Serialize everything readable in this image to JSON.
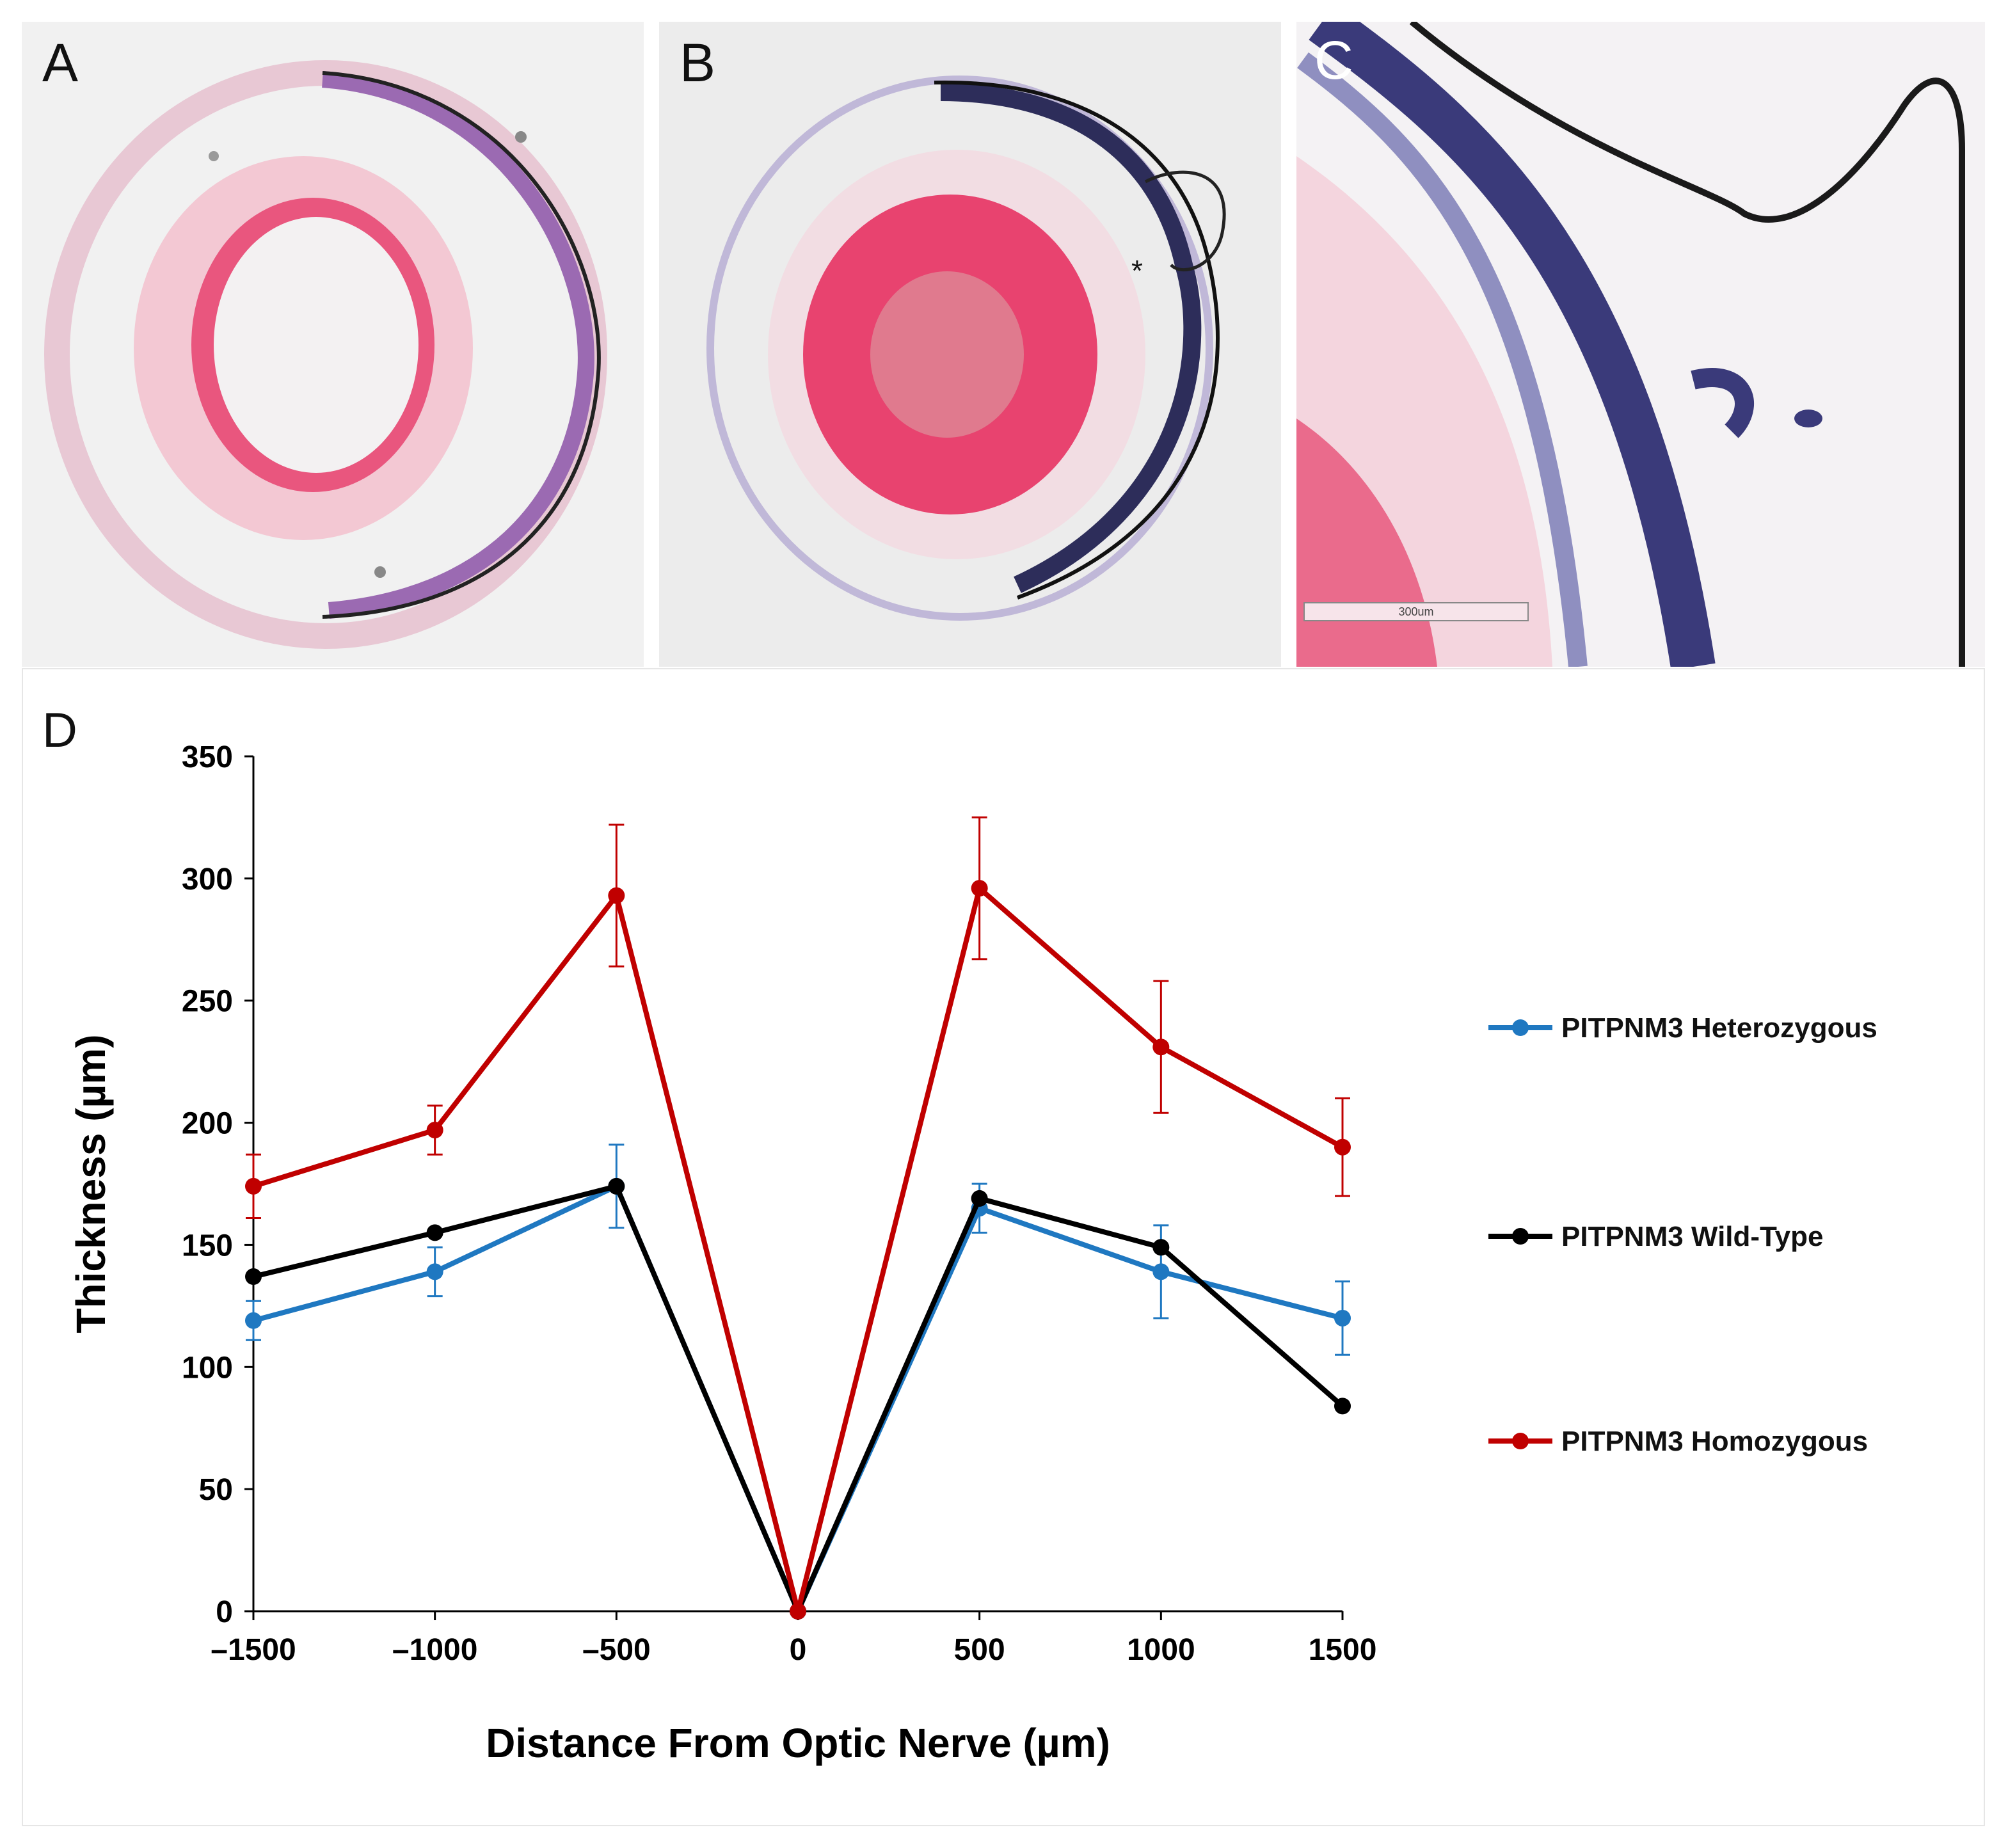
{
  "panels": {
    "a": {
      "letter": "A"
    },
    "b": {
      "letter": "B",
      "asterisk": "*"
    },
    "c": {
      "letter": "C",
      "scale_bar": "300um"
    },
    "d": {
      "letter": "D"
    }
  },
  "chart_data": {
    "type": "line",
    "title": "",
    "xlabel": "Distance From Optic Nerve (µm)",
    "ylabel": "Thickness (µm)",
    "xlim": [
      -1500,
      1500
    ],
    "ylim": [
      0,
      350
    ],
    "x_ticks": [
      -1500,
      -1000,
      -500,
      0,
      500,
      1000,
      1500
    ],
    "x_tick_labels": [
      "–1500",
      "–1000",
      "–500",
      "0",
      "500",
      "1000",
      "1500"
    ],
    "y_ticks": [
      0,
      50,
      100,
      150,
      200,
      250,
      300,
      350
    ],
    "y_tick_labels": [
      "0",
      "50",
      "100",
      "150",
      "200",
      "250",
      "300",
      "350"
    ],
    "grid": false,
    "legend_position": "right",
    "x": [
      -1500,
      -1000,
      -500,
      0,
      500,
      1000,
      1500
    ],
    "series": [
      {
        "name": "PITPNM3 Heterozygous",
        "color": "#1f78c1",
        "values": [
          119,
          139,
          174,
          0,
          165,
          139,
          120
        ],
        "error": [
          8,
          10,
          17,
          0,
          10,
          19,
          15
        ]
      },
      {
        "name": "PITPNM3 Wild-Type",
        "color": "#000000",
        "values": [
          137,
          155,
          174,
          0,
          169,
          149,
          84
        ],
        "error": [
          0,
          0,
          0,
          0,
          0,
          0,
          0
        ]
      },
      {
        "name": "PITPNM3 Homozygous",
        "color": "#c00000",
        "values": [
          174,
          197,
          293,
          0,
          296,
          231,
          190
        ],
        "error": [
          13,
          10,
          29,
          0,
          29,
          27,
          20
        ]
      }
    ]
  }
}
